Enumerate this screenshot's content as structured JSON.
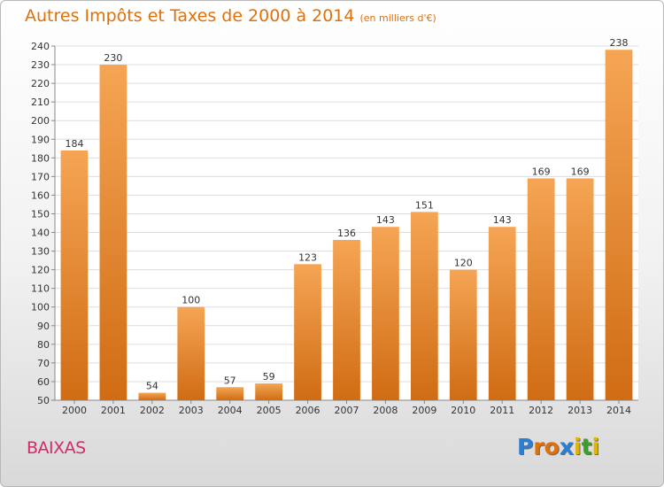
{
  "title": "Autres Impôts et Taxes de 2000 à 2014",
  "unit": "(en milliers d'€)",
  "commune": "BAIXAS",
  "logo": {
    "letters": [
      "P",
      "r",
      "o",
      "x",
      "i",
      "t",
      "i"
    ],
    "colors": [
      "#2a7fd4",
      "#e0700a",
      "#e0700a",
      "#2a7fd4",
      "#e0b400",
      "#3aa02a",
      "#e0b400"
    ]
  },
  "colors": {
    "bar_light": "#f5a554",
    "bar_dark": "#d06c14",
    "title": "#e0700a",
    "commune": "#d42a6c"
  },
  "chart_data": {
    "type": "bar",
    "categories": [
      "2000",
      "2001",
      "2002",
      "2003",
      "2004",
      "2005",
      "2006",
      "2007",
      "2008",
      "2009",
      "2010",
      "2011",
      "2012",
      "2013",
      "2014"
    ],
    "values": [
      184,
      230,
      54,
      100,
      57,
      59,
      123,
      136,
      143,
      151,
      120,
      143,
      169,
      169,
      238
    ],
    "title": "Autres Impôts et Taxes de 2000 à 2014",
    "ylim": [
      50,
      240
    ],
    "yticks": [
      50,
      60,
      70,
      80,
      90,
      100,
      110,
      120,
      130,
      140,
      150,
      160,
      170,
      180,
      190,
      200,
      210,
      220,
      230,
      240
    ],
    "grid": true
  }
}
